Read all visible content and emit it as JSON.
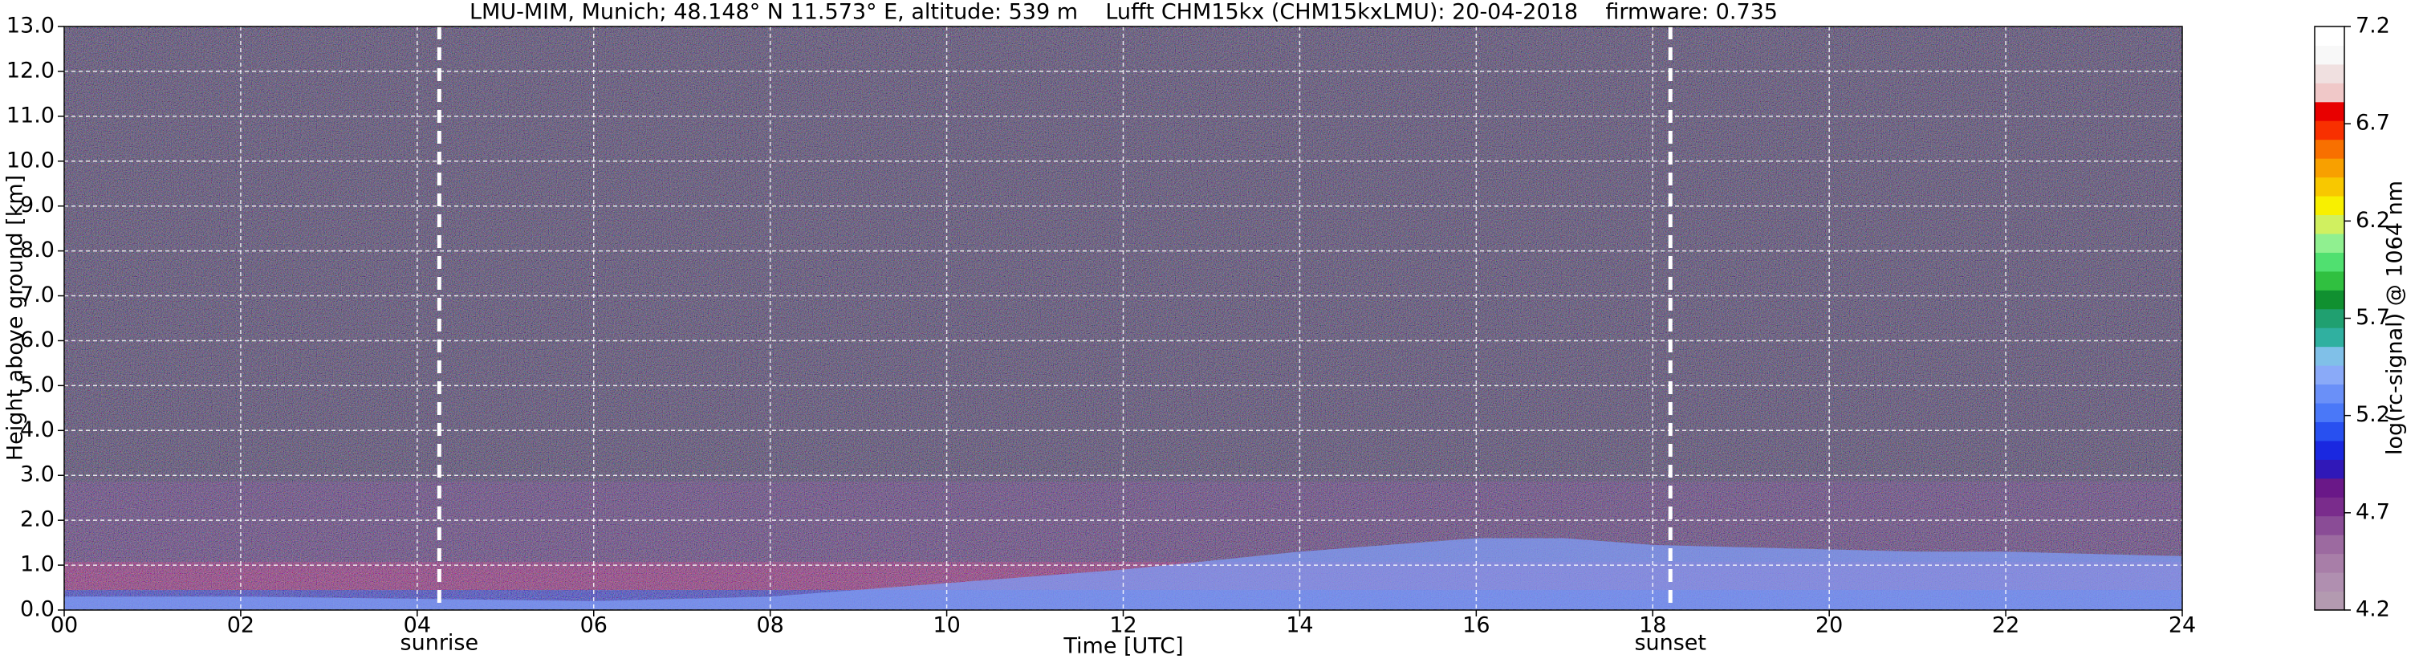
{
  "chart_data": {
    "type": "heatmap",
    "title": "LMU-MIM, Munich; 48.148° N 11.573° E, altitude: 539 m    Lufft CHM15kx (CHM15kxLMU): 20-04-2018    firmware: 0.735",
    "x_label": "Time [UTC]",
    "y_label": "Height above ground [km]",
    "xlim": [
      0,
      24
    ],
    "ylim": [
      0,
      13
    ],
    "xticks": [
      {
        "value": 0,
        "label": "00"
      },
      {
        "value": 2,
        "label": "02"
      },
      {
        "value": 4,
        "label": "04"
      },
      {
        "value": 6,
        "label": "06"
      },
      {
        "value": 8,
        "label": "08"
      },
      10,
      12,
      14,
      16,
      18,
      20,
      22,
      24
    ],
    "yticks": [
      {
        "value": 0,
        "label": "0.0"
      },
      {
        "value": 1,
        "label": "1.0"
      },
      {
        "value": 2,
        "label": "2.0"
      },
      {
        "value": 3,
        "label": "3.0"
      },
      {
        "value": 4,
        "label": "4.0"
      },
      {
        "value": 5,
        "label": "5.0"
      },
      {
        "value": 6,
        "label": "6.0"
      },
      {
        "value": 7,
        "label": "7.0"
      },
      {
        "value": 8,
        "label": "8.0"
      },
      {
        "value": 9,
        "label": "9.0"
      },
      {
        "value": 10,
        "label": "10.0"
      },
      {
        "value": 11,
        "label": "11.0"
      },
      {
        "value": 12,
        "label": "12.0"
      },
      {
        "value": 13,
        "label": "13.0"
      }
    ],
    "grid": true,
    "annotations": [
      {
        "text": "sunrise",
        "x": 4.25
      },
      {
        "text": "sunset",
        "x": 18.2
      }
    ],
    "boundary_layer": {
      "x": [
        0,
        2,
        4,
        6,
        8,
        9,
        10,
        11,
        12,
        13,
        14,
        15,
        16,
        17,
        18,
        19,
        20,
        21,
        22,
        23,
        24
      ],
      "values": [
        0.3,
        0.3,
        0.25,
        0.2,
        0.3,
        0.45,
        0.6,
        0.75,
        0.9,
        1.1,
        1.3,
        1.45,
        1.6,
        1.6,
        1.45,
        1.4,
        1.35,
        1.3,
        1.3,
        1.25,
        1.2
      ],
      "color": "#7f9cf5"
    },
    "colorbar": {
      "label": "log(rc-signal) @ 1064 nm",
      "lim": [
        4.2,
        7.2
      ],
      "ticks": [
        4.2,
        4.7,
        5.2,
        5.7,
        6.2,
        6.7,
        7.2
      ],
      "colors": [
        "#b39ab0",
        "#b08fb0",
        "#a87ea8",
        "#9c6aa0",
        "#8a4c96",
        "#7a2c8c",
        "#6a1888",
        "#3018b8",
        "#1a28e0",
        "#2850f0",
        "#4a78f8",
        "#6a90f8",
        "#8aaaf8",
        "#80c0e8",
        "#30b0a0",
        "#20a070",
        "#109030",
        "#30c040",
        "#50e070",
        "#90f090",
        "#d0f060",
        "#f8f000",
        "#f8c800",
        "#f8a000",
        "#f87000",
        "#f83000",
        "#e80000",
        "#f0c8c8",
        "#f0e0e0",
        "#f8f8f8",
        "#ffffff"
      ]
    }
  }
}
